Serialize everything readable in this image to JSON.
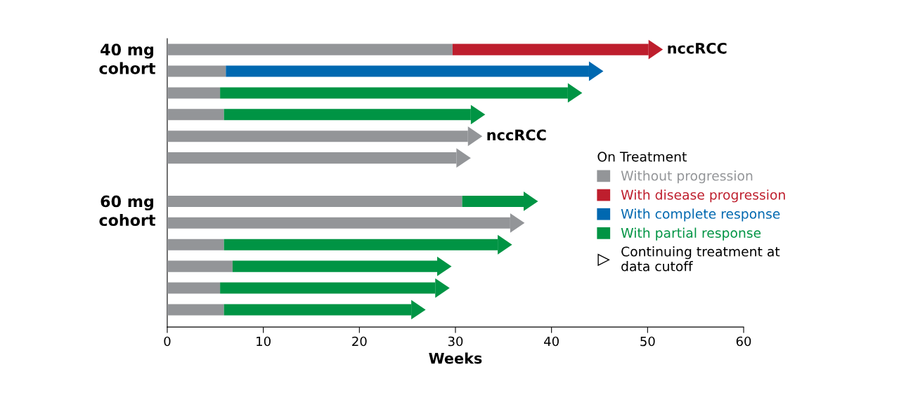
{
  "chart_data": {
    "type": "bar",
    "orientation": "horizontal",
    "stacked": true,
    "categories": [
      null,
      null,
      null,
      null,
      null,
      null,
      null,
      null,
      null,
      null,
      null,
      null,
      null
    ],
    "series": [
      {
        "name": "Without progression",
        "color": "#939598",
        "values": [
          29.7,
          6.1,
          5.5,
          5.9,
          31.3,
          30.1,
          null,
          30.7,
          35.7,
          5.9,
          6.8,
          5.5,
          5.9
        ],
        "value_labels": [
          null,
          null,
          null,
          null,
          "nccRCC",
          null,
          null,
          null,
          null,
          null,
          null,
          null,
          null
        ]
      },
      {
        "name": "With disease progression",
        "color": "#be1e2d",
        "values": [
          20.4,
          null,
          null,
          null,
          null,
          null,
          null,
          null,
          null,
          null,
          null,
          null,
          null
        ],
        "value_labels": [
          "nccRCC",
          null,
          null,
          null,
          null,
          null,
          null,
          null,
          null,
          null,
          null,
          null,
          null
        ]
      },
      {
        "name": "With complete response",
        "color": "#0068b0",
        "values": [
          null,
          37.8,
          null,
          null,
          null,
          null,
          null,
          null,
          null,
          null,
          null,
          null,
          null
        ]
      },
      {
        "name": "With partial response",
        "color": "#009444",
        "values": [
          null,
          null,
          36.2,
          25.7,
          null,
          null,
          null,
          6.4,
          null,
          28.5,
          21.3,
          22.4,
          19.5
        ]
      }
    ],
    "xlabel": "Weeks",
    "xlim": [
      0,
      60
    ],
    "xticks": [
      0,
      10,
      20,
      30,
      40,
      50,
      60
    ],
    "legend": "right",
    "legend_title": "On Treatment",
    "grid": false,
    "annotations": [
      "40 mg\ncohort",
      "60 mg\ncohort",
      "Continuing treatment at\ndata cutoff"
    ]
  }
}
